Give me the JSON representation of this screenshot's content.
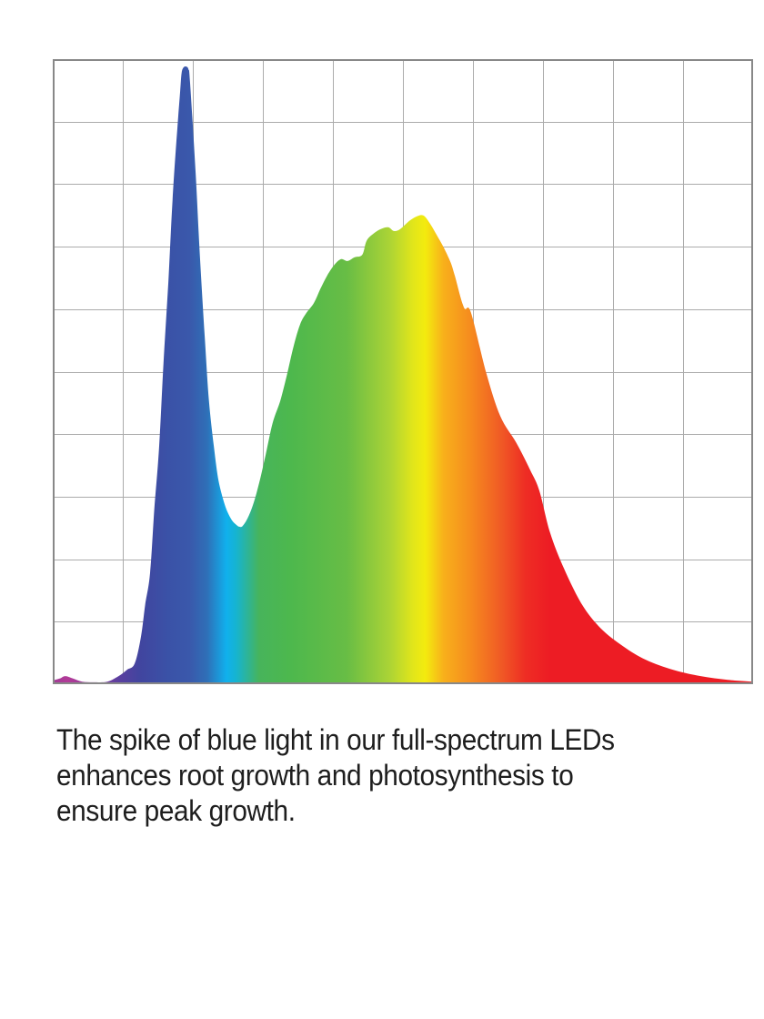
{
  "page": {
    "caption": "The spike of blue light in our full-spectrum LEDs\nenhances root growth and photosynthesis to\nensure peak growth."
  },
  "chart_data": {
    "type": "area",
    "grid": {
      "columns": 10,
      "rows": 10,
      "show": true,
      "line_color": "#ababab",
      "frame_color": "#888888",
      "background": "#ffffff"
    },
    "y_range": [
      0,
      1
    ],
    "series": [
      {
        "name": "led-spectrum-relative-intensity",
        "points": [
          [
            0.0,
            0.006
          ],
          [
            0.01,
            0.009
          ],
          [
            0.018,
            0.013
          ],
          [
            0.029,
            0.009
          ],
          [
            0.042,
            0.004
          ],
          [
            0.058,
            0.003
          ],
          [
            0.078,
            0.004
          ],
          [
            0.094,
            0.013
          ],
          [
            0.106,
            0.023
          ],
          [
            0.117,
            0.033
          ],
          [
            0.126,
            0.076
          ],
          [
            0.132,
            0.127
          ],
          [
            0.139,
            0.178
          ],
          [
            0.145,
            0.279
          ],
          [
            0.152,
            0.381
          ],
          [
            0.158,
            0.512
          ],
          [
            0.165,
            0.643
          ],
          [
            0.171,
            0.774
          ],
          [
            0.178,
            0.891
          ],
          [
            0.182,
            0.949
          ],
          [
            0.184,
            0.978
          ],
          [
            0.187,
            0.987
          ],
          [
            0.191,
            0.988
          ],
          [
            0.194,
            0.983
          ],
          [
            0.196,
            0.964
          ],
          [
            0.204,
            0.818
          ],
          [
            0.21,
            0.687
          ],
          [
            0.217,
            0.556
          ],
          [
            0.223,
            0.454
          ],
          [
            0.23,
            0.381
          ],
          [
            0.236,
            0.33
          ],
          [
            0.243,
            0.297
          ],
          [
            0.249,
            0.277
          ],
          [
            0.256,
            0.262
          ],
          [
            0.262,
            0.255
          ],
          [
            0.266,
            0.252
          ],
          [
            0.271,
            0.253
          ],
          [
            0.278,
            0.265
          ],
          [
            0.286,
            0.287
          ],
          [
            0.295,
            0.323
          ],
          [
            0.304,
            0.367
          ],
          [
            0.314,
            0.418
          ],
          [
            0.325,
            0.454
          ],
          [
            0.334,
            0.493
          ],
          [
            0.344,
            0.541
          ],
          [
            0.353,
            0.575
          ],
          [
            0.361,
            0.592
          ],
          [
            0.373,
            0.61
          ],
          [
            0.382,
            0.632
          ],
          [
            0.392,
            0.654
          ],
          [
            0.403,
            0.672
          ],
          [
            0.412,
            0.68
          ],
          [
            0.421,
            0.677
          ],
          [
            0.431,
            0.683
          ],
          [
            0.442,
            0.687
          ],
          [
            0.448,
            0.709
          ],
          [
            0.457,
            0.72
          ],
          [
            0.468,
            0.728
          ],
          [
            0.479,
            0.731
          ],
          [
            0.487,
            0.725
          ],
          [
            0.496,
            0.728
          ],
          [
            0.509,
            0.741
          ],
          [
            0.519,
            0.748
          ],
          [
            0.529,
            0.75
          ],
          [
            0.538,
            0.738
          ],
          [
            0.548,
            0.719
          ],
          [
            0.558,
            0.699
          ],
          [
            0.568,
            0.675
          ],
          [
            0.574,
            0.654
          ],
          [
            0.587,
            0.603
          ],
          [
            0.597,
            0.595
          ],
          [
            0.619,
            0.498
          ],
          [
            0.639,
            0.429
          ],
          [
            0.662,
            0.386
          ],
          [
            0.682,
            0.342
          ],
          [
            0.695,
            0.309
          ],
          [
            0.71,
            0.243
          ],
          [
            0.73,
            0.185
          ],
          [
            0.756,
            0.127
          ],
          [
            0.782,
            0.09
          ],
          [
            0.814,
            0.061
          ],
          [
            0.847,
            0.039
          ],
          [
            0.886,
            0.023
          ],
          [
            0.925,
            0.013
          ],
          [
            0.964,
            0.007
          ],
          [
            1.0,
            0.004
          ]
        ]
      }
    ],
    "spectrum_gradient": [
      {
        "offset": 0.0,
        "color": "#a23a96"
      },
      {
        "offset": 0.022,
        "color": "#b23b98"
      },
      {
        "offset": 0.055,
        "color": "#8e3c9b"
      },
      {
        "offset": 0.095,
        "color": "#5a3f9f"
      },
      {
        "offset": 0.125,
        "color": "#41459f"
      },
      {
        "offset": 0.165,
        "color": "#3a52a7"
      },
      {
        "offset": 0.195,
        "color": "#3a58ab"
      },
      {
        "offset": 0.22,
        "color": "#2f6fb7"
      },
      {
        "offset": 0.248,
        "color": "#10b0ed"
      },
      {
        "offset": 0.262,
        "color": "#16b4d0"
      },
      {
        "offset": 0.295,
        "color": "#47b45b"
      },
      {
        "offset": 0.34,
        "color": "#4db84d"
      },
      {
        "offset": 0.42,
        "color": "#68bd45"
      },
      {
        "offset": 0.48,
        "color": "#aad336"
      },
      {
        "offset": 0.515,
        "color": "#e2e61a"
      },
      {
        "offset": 0.532,
        "color": "#f3eb0e"
      },
      {
        "offset": 0.558,
        "color": "#f8b01b"
      },
      {
        "offset": 0.595,
        "color": "#f68d1e"
      },
      {
        "offset": 0.64,
        "color": "#f05a25"
      },
      {
        "offset": 0.675,
        "color": "#ee2d24"
      },
      {
        "offset": 0.71,
        "color": "#ed1c24"
      },
      {
        "offset": 1.0,
        "color": "#ed1c24"
      }
    ]
  }
}
